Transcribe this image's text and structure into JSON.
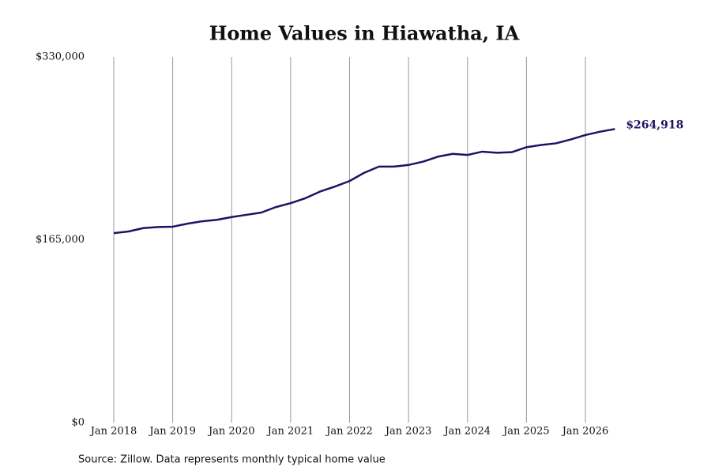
{
  "chart_data": {
    "type": "line",
    "title": "Home Values in Hiawatha, IA",
    "note": "Source: Zillow. Data represents monthly typical home value",
    "x": [
      "2018-01",
      "2018-04",
      "2018-07",
      "2018-10",
      "2019-01",
      "2019-04",
      "2019-07",
      "2019-10",
      "2020-01",
      "2020-04",
      "2020-07",
      "2020-10",
      "2021-01",
      "2021-04",
      "2021-07",
      "2021-10",
      "2022-01",
      "2022-04",
      "2022-07",
      "2022-10",
      "2023-01",
      "2023-04",
      "2023-07",
      "2023-10",
      "2024-01",
      "2024-04",
      "2024-07",
      "2024-10",
      "2025-01",
      "2025-04",
      "2025-07",
      "2025-10",
      "2026-01",
      "2026-04",
      "2026-07"
    ],
    "series": [
      {
        "name": "Typical home value",
        "color": "#1b1464",
        "values": [
          171000,
          172500,
          175500,
          176500,
          176800,
          179500,
          181700,
          183000,
          185500,
          187500,
          189500,
          194500,
          198000,
          202500,
          208500,
          213000,
          218000,
          225500,
          231000,
          231000,
          232500,
          235500,
          240000,
          242500,
          241500,
          244500,
          243500,
          244000,
          248500,
          250500,
          252000,
          255500,
          259500,
          262500,
          264918
        ],
        "value_labels": [
          null,
          null,
          null,
          null,
          null,
          null,
          null,
          null,
          null,
          null,
          null,
          null,
          null,
          null,
          null,
          null,
          null,
          null,
          null,
          null,
          null,
          null,
          null,
          null,
          null,
          null,
          null,
          null,
          null,
          null,
          null,
          null,
          null,
          null,
          "$264,918"
        ]
      }
    ],
    "xticks": [
      {
        "value": "2018-01",
        "label": "Jan 2018"
      },
      {
        "value": "2019-01",
        "label": "Jan 2019"
      },
      {
        "value": "2020-01",
        "label": "Jan 2020"
      },
      {
        "value": "2021-01",
        "label": "Jan 2021"
      },
      {
        "value": "2022-01",
        "label": "Jan 2022"
      },
      {
        "value": "2023-01",
        "label": "Jan 2023"
      },
      {
        "value": "2024-01",
        "label": "Jan 2024"
      },
      {
        "value": "2025-01",
        "label": "Jan 2025"
      },
      {
        "value": "2026-01",
        "label": "Jan 2026"
      }
    ],
    "ylim": [
      0,
      330000
    ],
    "yticks": [
      {
        "value": 0,
        "label": "$0"
      },
      {
        "value": 165000,
        "label": "$165,000"
      },
      {
        "value": 330000,
        "label": "$330,000"
      }
    ],
    "grid": "x"
  }
}
